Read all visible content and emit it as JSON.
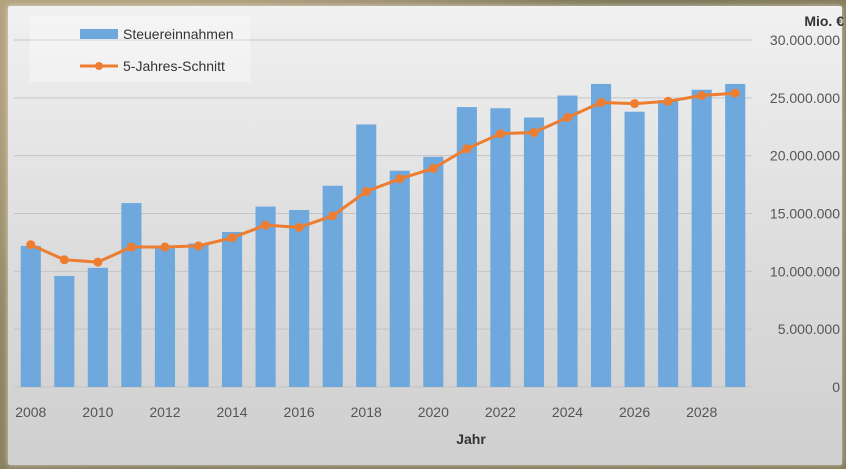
{
  "chart_data": {
    "type": "bar",
    "title": "",
    "xlabel": "Jahr",
    "ylabel": "Mio. €",
    "ylim": [
      0,
      30000000
    ],
    "yticks": [
      "0",
      "5.000.000",
      "10.000.000",
      "15.000.000",
      "20.000.000",
      "25.000.000",
      "30.000.000"
    ],
    "xticks": [
      "2008",
      "2010",
      "2012",
      "2014",
      "2016",
      "2018",
      "2020",
      "2022",
      "2024",
      "2026",
      "2028"
    ],
    "categories": [
      2008,
      2009,
      2010,
      2011,
      2012,
      2013,
      2014,
      2015,
      2016,
      2017,
      2018,
      2019,
      2020,
      2021,
      2022,
      2023,
      2024,
      2025,
      2026,
      2027,
      2028,
      2029
    ],
    "series": [
      {
        "name": "Steuereinnahmen",
        "kind": "bar",
        "color": "#6fa8dc",
        "values": [
          12200000,
          9600000,
          10300000,
          15900000,
          12000000,
          12400000,
          13400000,
          15600000,
          15300000,
          17400000,
          22700000,
          18700000,
          19900000,
          24200000,
          24100000,
          23300000,
          25200000,
          26200000,
          23800000,
          24800000,
          25700000,
          26200000
        ]
      },
      {
        "name": "5-Jahres-Schnitt",
        "kind": "line",
        "color": "#ed7d31",
        "values": [
          12300000,
          11000000,
          10800000,
          12100000,
          12100000,
          12200000,
          12900000,
          14000000,
          13800000,
          14800000,
          16900000,
          18000000,
          18900000,
          20600000,
          21900000,
          22000000,
          23300000,
          24600000,
          24500000,
          24700000,
          25200000,
          25400000
        ]
      }
    ],
    "grid": true,
    "legend": "top-left"
  }
}
